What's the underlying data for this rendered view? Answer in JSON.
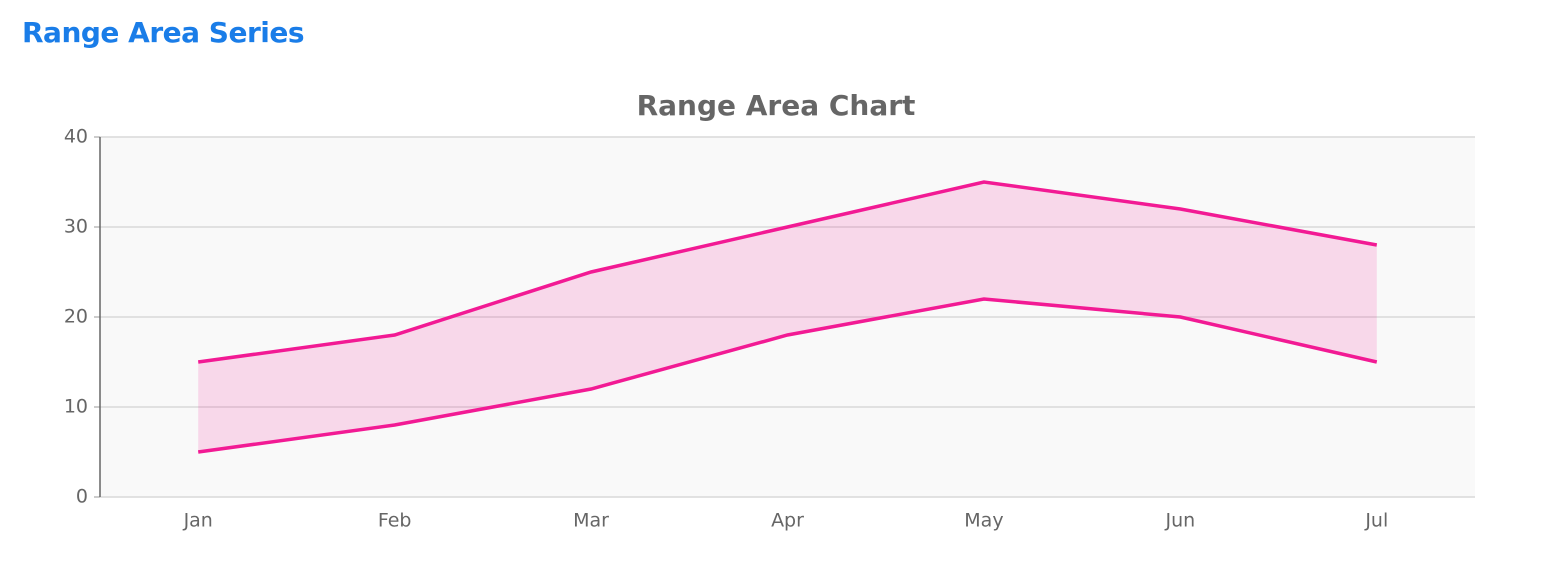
{
  "header": {
    "title": "Range Area Series"
  },
  "chart_data": {
    "type": "range_area",
    "title": "Range Area Chart",
    "categories": [
      "Jan",
      "Feb",
      "Mar",
      "Apr",
      "May",
      "Jun",
      "Jul"
    ],
    "low": [
      5,
      8,
      12,
      18,
      22,
      20,
      15
    ],
    "high": [
      15,
      18,
      25,
      30,
      35,
      32,
      28
    ],
    "color": "#f21a94",
    "ylim": [
      0,
      40
    ],
    "yticks": [
      0,
      10,
      20,
      30,
      40
    ],
    "grid": true
  }
}
